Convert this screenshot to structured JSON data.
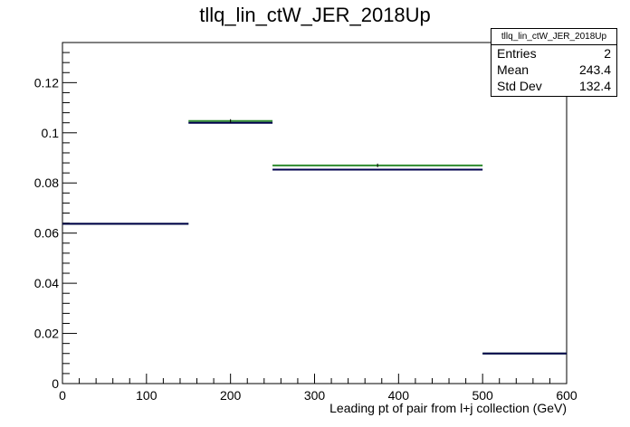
{
  "title": "tllq_lin_ctW_JER_2018Up",
  "stats": {
    "name": "tllq_lin_ctW_JER_2018Up",
    "rows": [
      {
        "label": "Entries",
        "value": "2"
      },
      {
        "label": "Mean",
        "value": "243.4"
      },
      {
        "label": "Std Dev",
        "value": "132.4"
      }
    ]
  },
  "chart_data": {
    "type": "histogram",
    "title": "tllq_lin_ctW_JER_2018Up",
    "xlabel": "Leading pt of pair from l+j collection (GeV)",
    "ylabel": "",
    "xlim": [
      0,
      600
    ],
    "ylim": [
      0,
      0.136
    ],
    "x_ticks": [
      0,
      100,
      200,
      300,
      400,
      500,
      600
    ],
    "y_ticks": [
      0,
      0.02,
      0.04,
      0.06,
      0.08,
      0.1,
      0.12
    ],
    "x_tick_labels": [
      "0",
      "100",
      "200",
      "300",
      "400",
      "500",
      "600"
    ],
    "y_tick_labels": [
      "0",
      "0.02",
      "0.04",
      "0.06",
      "0.08",
      "0.1",
      "0.12"
    ],
    "bins": [
      {
        "lo": 0,
        "hi": 150,
        "values": {
          "green": 0.0637,
          "navy": 0.0637
        }
      },
      {
        "lo": 150,
        "hi": 250,
        "values": {
          "green": 0.1047,
          "navy": 0.104
        }
      },
      {
        "lo": 250,
        "hi": 500,
        "values": {
          "green": 0.087,
          "navy": 0.0853
        }
      },
      {
        "lo": 500,
        "hi": 600,
        "values": {
          "green": 0.012,
          "navy": 0.012
        }
      }
    ],
    "series_colors": {
      "green": "#2e8b2e",
      "navy": "#00004c"
    }
  }
}
